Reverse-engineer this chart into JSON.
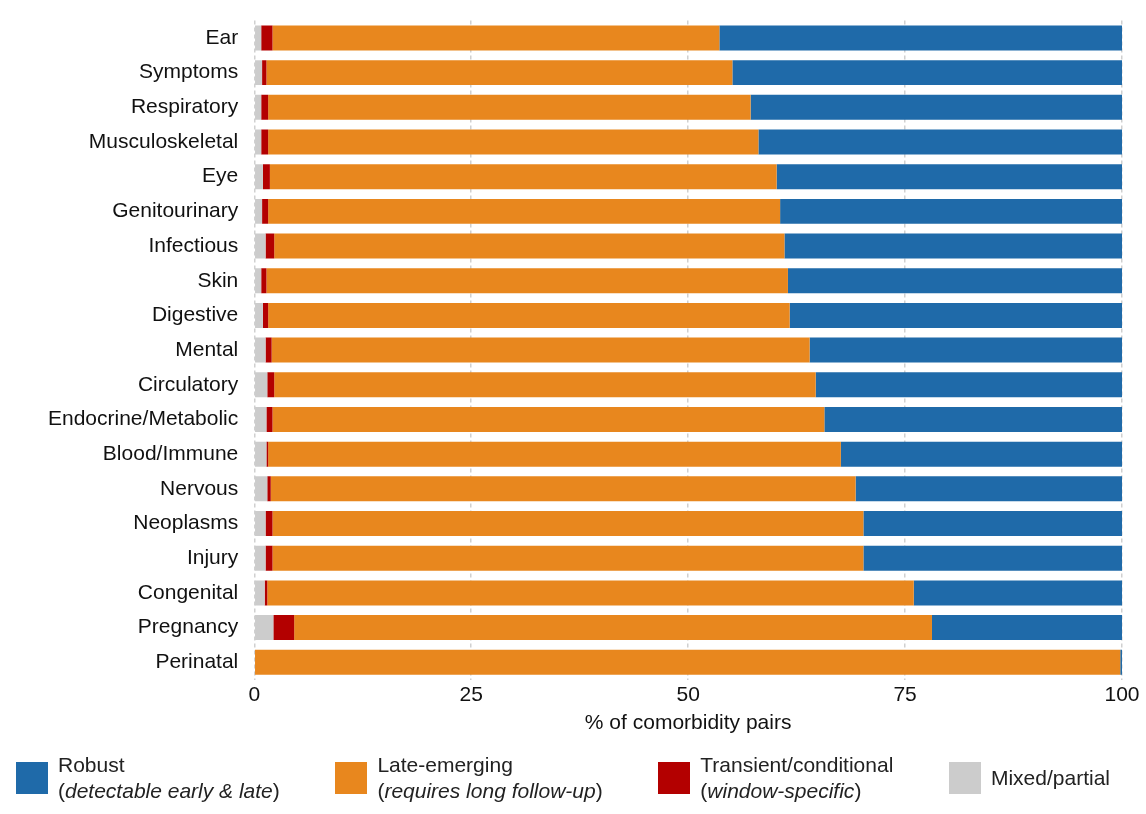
{
  "chart_data": {
    "type": "bar",
    "orientation": "horizontal",
    "stacked": true,
    "xlabel": "% of comorbidity pairs",
    "categories": [
      "Ear",
      "Symptoms",
      "Respiratory",
      "Musculoskeletal",
      "Eye",
      "Genitourinary",
      "Infectious",
      "Skin",
      "Digestive",
      "Mental",
      "Circulatory",
      "Endocrine/Metabolic",
      "Blood/Immune",
      "Nervous",
      "Neoplasms",
      "Injury",
      "Congenital",
      "Pregnancy",
      "Perinatal"
    ],
    "series": [
      {
        "name": "Mixed/partial",
        "color": "#cccccc",
        "values": [
          0.8,
          0.9,
          0.8,
          0.8,
          1.0,
          0.9,
          1.3,
          0.8,
          1.0,
          1.3,
          1.5,
          1.4,
          1.4,
          1.5,
          1.3,
          1.3,
          1.2,
          2.2,
          0
        ]
      },
      {
        "name": "Transient/conditional (window-specific)",
        "color": "#b30000",
        "values": [
          1.3,
          0.5,
          0.8,
          0.8,
          0.8,
          0.7,
          1.0,
          0.6,
          0.6,
          0.7,
          0.8,
          0.7,
          0.2,
          0.4,
          0.8,
          0.8,
          0.3,
          2.4,
          0
        ]
      },
      {
        "name": "Late-emerging (requires long follow-up)",
        "color": "#e8871e",
        "values": [
          51.5,
          53.7,
          55.6,
          56.5,
          58.4,
          59.0,
          58.8,
          60.1,
          60.1,
          62.0,
          62.4,
          63.6,
          66.0,
          67.4,
          68.1,
          68.1,
          74.5,
          73.5,
          99.8
        ]
      },
      {
        "name": "Robust (detectable early & late)",
        "color": "#1f6aa9",
        "values": [
          46.4,
          44.9,
          42.8,
          41.9,
          39.8,
          39.4,
          38.9,
          38.5,
          38.3,
          36.0,
          35.3,
          34.3,
          32.4,
          30.7,
          29.8,
          29.8,
          24.0,
          21.9,
          0.2
        ]
      }
    ],
    "xlim": [
      0,
      100
    ],
    "xticks": [
      0,
      25,
      50,
      75,
      100
    ],
    "grid": "x",
    "legend": "bottom"
  }
}
